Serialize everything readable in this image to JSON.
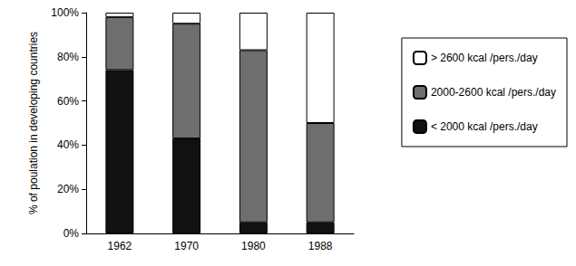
{
  "chart_data": {
    "type": "bar",
    "stacked": true,
    "y_label": "% of poulation in developing countries",
    "categories": [
      "1962",
      "1970",
      "1980",
      "1988"
    ],
    "series": [
      {
        "name": "< 2000 kcal /pers./day",
        "color": "#111111",
        "values": [
          74,
          43,
          5,
          5
        ]
      },
      {
        "name": "2000-2600 kcal /pers./day",
        "color": "#6e6e6e",
        "values": [
          24,
          52,
          78,
          45
        ]
      },
      {
        "name": "> 2600 kcal /pers./day",
        "color": "#ffffff",
        "values": [
          2,
          5,
          17,
          50
        ]
      }
    ],
    "ylim": [
      0,
      100
    ],
    "yticks": [
      {
        "value": 0,
        "label": "0%"
      },
      {
        "value": 20,
        "label": "20%"
      },
      {
        "value": 40,
        "label": "40%"
      },
      {
        "value": 60,
        "label": "60%"
      },
      {
        "value": 80,
        "label": "80%"
      },
      {
        "value": 100,
        "label": "100%"
      }
    ],
    "grid": false,
    "legend": "right"
  }
}
